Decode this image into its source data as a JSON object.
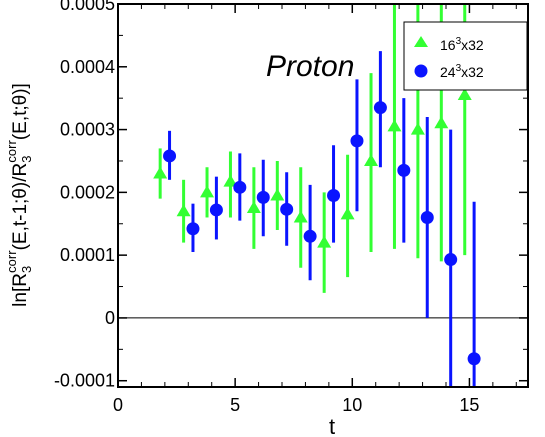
{
  "chart_data": {
    "type": "scatter",
    "title": "",
    "annotation": "Proton",
    "xlabel": "t",
    "ylabel": {
      "prefix": "ln[R",
      "sub1": "3",
      "sup1": "corr",
      "mid": "(E,t-1;θ)/R",
      "sub2": "3",
      "sup2": "corr",
      "suffix": "(E,t;θ)]"
    },
    "xlim": [
      0,
      17.5
    ],
    "ylim": [
      -0.00011,
      0.0005
    ],
    "x_ticks": [
      0,
      5,
      10,
      15
    ],
    "x_tick_labels": [
      "0",
      "5",
      "10",
      "15"
    ],
    "y_ticks": [
      -0.0001,
      0,
      0.0001,
      0.0002,
      0.0003,
      0.0004,
      0.0005
    ],
    "y_tick_labels": [
      "-0.0001",
      "0",
      "0.0001",
      "0.0002",
      "0.0003",
      "0.0004",
      "0.0005"
    ],
    "reference_line_y": 0,
    "legend_position": "top-right",
    "series": [
      {
        "name_base": "16",
        "name_sup": "3",
        "name_rest": "x32",
        "marker": "triangle",
        "color": "#33ff33",
        "x": [
          1.8,
          2.8,
          3.8,
          4.8,
          5.8,
          6.8,
          7.8,
          8.8,
          9.8,
          10.8,
          11.8,
          12.8,
          13.8,
          14.8
        ],
        "y": [
          0.00023,
          0.00017,
          0.0002,
          0.000217,
          0.000175,
          0.000195,
          0.00016,
          0.00012,
          0.000165,
          0.00025,
          0.000305,
          0.0003,
          0.00031,
          0.000355
        ],
        "err_low": [
          0.00019,
          0.00012,
          0.00016,
          0.00016,
          0.00011,
          0.00014,
          8e-05,
          4e-05,
          6.5e-05,
          0.000105,
          0.00011,
          9.5e-05,
          9e-05,
          0.0001
        ],
        "err_high": [
          0.00027,
          0.00022,
          0.00024,
          0.000265,
          0.00024,
          0.00025,
          0.00024,
          0.0002,
          0.00026,
          0.00039,
          0.0005,
          0.0005,
          0.0005,
          0.0005
        ]
      },
      {
        "name_base": "24",
        "name_sup": "3",
        "name_rest": "x32",
        "marker": "circle",
        "color": "#0a14ff",
        "x": [
          2.2,
          3.2,
          4.2,
          5.2,
          6.2,
          7.2,
          8.2,
          9.2,
          10.2,
          11.2,
          12.2,
          13.2,
          14.2,
          15.2
        ],
        "y": [
          0.000258,
          0.000142,
          0.000172,
          0.000208,
          0.000192,
          0.000173,
          0.00013,
          0.000195,
          0.000282,
          0.000335,
          0.000235,
          0.00016,
          9.3e-05,
          -6.5e-05
        ],
        "err_low": [
          0.00022,
          0.000105,
          0.000125,
          0.000155,
          0.00013,
          0.000115,
          6e-05,
          0.00012,
          0.00017,
          0.00024,
          0.00012,
          0.0,
          -0.00011,
          -0.00011
        ],
        "err_high": [
          0.000298,
          0.000182,
          0.000225,
          0.000262,
          0.000252,
          0.000232,
          0.000212,
          0.000275,
          0.00038,
          0.000425,
          0.00035,
          0.00032,
          0.0003,
          0.000185
        ]
      }
    ]
  }
}
